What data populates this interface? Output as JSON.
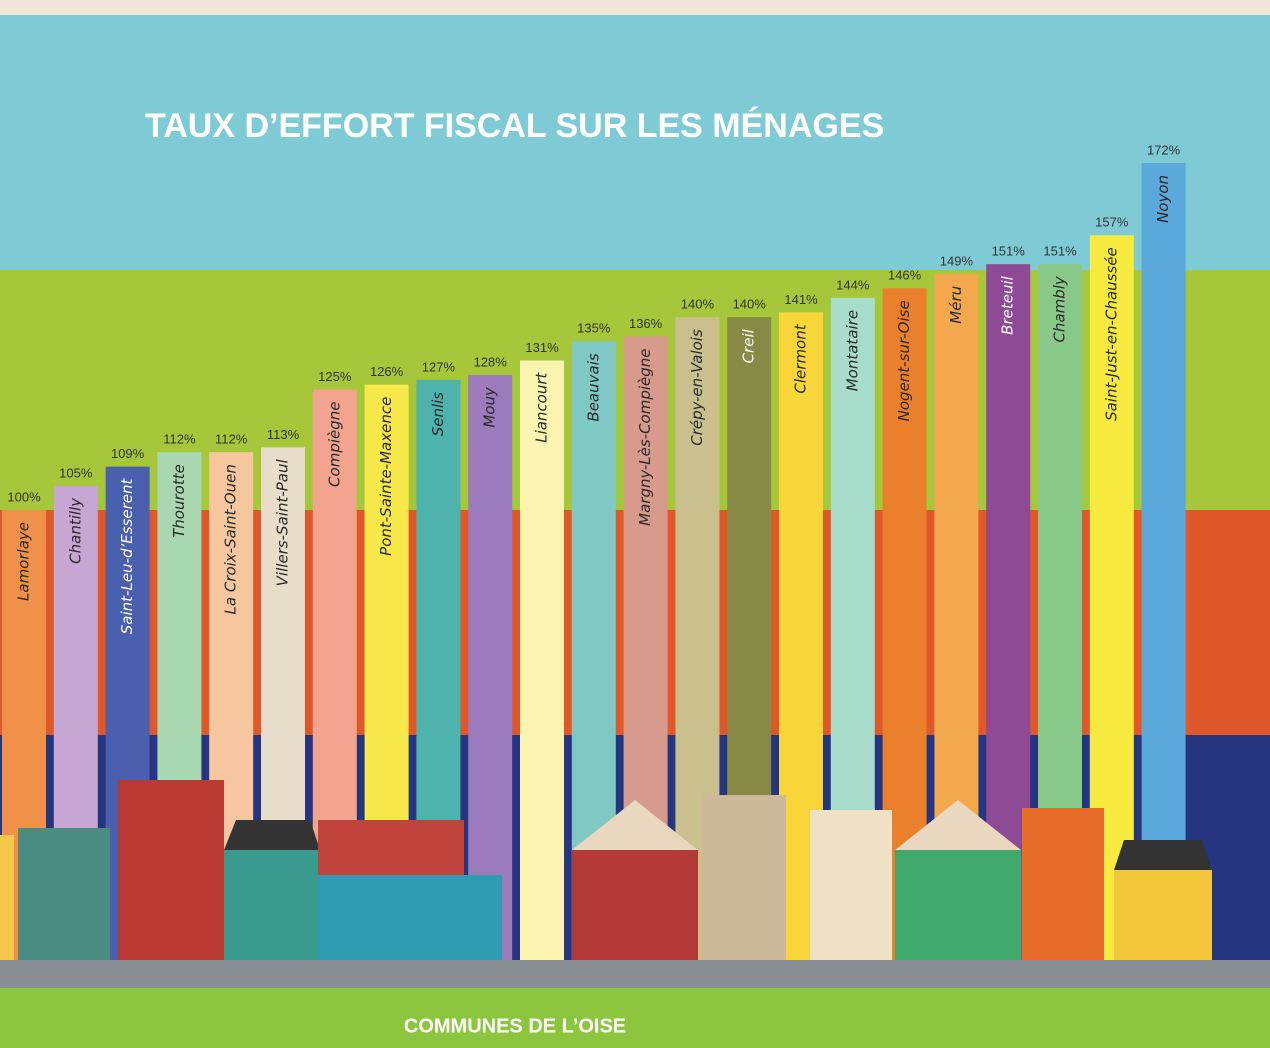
{
  "chart_data": {
    "type": "bar",
    "title": "TAUX D’EFFORT FISCAL SUR LES MÉNAGES",
    "x_label": "COMMUNES DE L’OISE",
    "categories": [
      "Lamorlaye",
      "Chantilly",
      "Saint-Leu-d’Esserent",
      "Thourotte",
      "La Croix-Saint-Ouen",
      "Villers-Saint-Paul",
      "Compiègne",
      "Pont-Sainte-Maxence",
      "Senlis",
      "Mouy",
      "Liancourt",
      "Beauvais",
      "Margny-Lès-Compiègne",
      "Crépy-en-Valois",
      "Creil",
      "Clermont",
      "Montataire",
      "Nogent-sur-Oise",
      "Méru",
      "Breteuil",
      "Chambly",
      "Saint-Just-en-Chaussée",
      "Noyon"
    ],
    "values": [
      100,
      105,
      109,
      112,
      112,
      113,
      125,
      126,
      127,
      128,
      131,
      135,
      136,
      140,
      140,
      141,
      144,
      146,
      149,
      151,
      151,
      157,
      172
    ],
    "value_labels": [
      "100%",
      "105%",
      "109%",
      "112%",
      "112%",
      "113%",
      "125%",
      "126%",
      "127%",
      "128%",
      "131%",
      "135%",
      "136%",
      "140%",
      "140%",
      "141%",
      "144%",
      "146%",
      "149%",
      "151%",
      "151%",
      "157%",
      "172%"
    ],
    "colors": [
      "#f0914a",
      "#c7a6d4",
      "#4a5fad",
      "#a9d7b2",
      "#f6c79e",
      "#e8dccb",
      "#f2a48e",
      "#f7e84a",
      "#4fb3ad",
      "#9c7bbd",
      "#fbf4b0",
      "#7fc8c4",
      "#d79a8c",
      "#c9c08e",
      "#868a45",
      "#f8d63a",
      "#a8dccb",
      "#ea7f2c",
      "#f3a84d",
      "#8e4a95",
      "#88c98a",
      "#f7ea3f",
      "#5ba8da"
    ]
  }
}
